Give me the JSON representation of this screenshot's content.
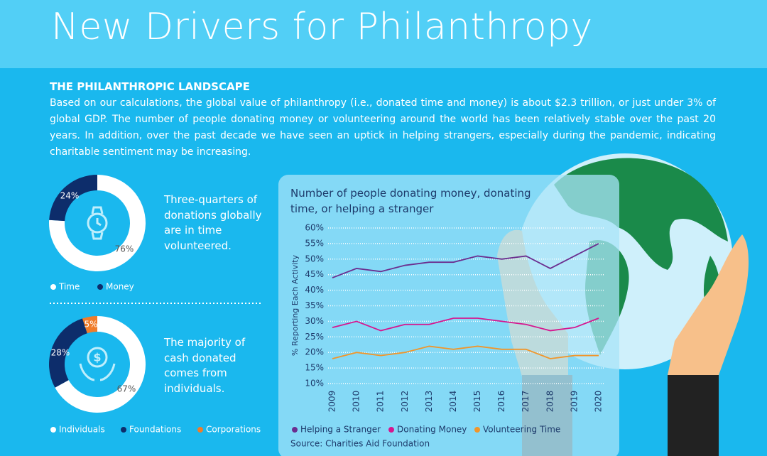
{
  "header": {
    "title": "New Drivers for Philanthropy"
  },
  "intro": {
    "heading": "THE PHILANTHROPIC LANDSCAPE",
    "text": "Based on our calculations, the global value of philanthropy (i.e., donated time and money) is about $2.3 trillion, or just under 3% of global GDP. The number of people donating money or volunteering around the world has been relatively stable over the past 20 years. In addition, over the past decade we have seen an uptick in helping strangers, especially during the pandemic, indicating charitable sentiment may be increasing."
  },
  "chart_data": [
    {
      "type": "pie",
      "text": "Three-quarters of donations globally are in time volunteered.",
      "categories": [
        "Time",
        "Money"
      ],
      "values": [
        76,
        24
      ],
      "value_labels": [
        "76%",
        "24%"
      ],
      "colors": [
        "#ffffff",
        "#0d2d6b"
      ]
    },
    {
      "type": "pie",
      "text": "The majority of cash donated comes from individuals.",
      "categories": [
        "Individuals",
        "Foundations",
        "Corporations"
      ],
      "values": [
        67,
        28,
        5
      ],
      "value_labels": [
        "67%",
        "28%",
        "5%"
      ],
      "colors": [
        "#ffffff",
        "#0d2d6b",
        "#f07c2a"
      ]
    },
    {
      "type": "line",
      "title": "Number of people donating money, donating time, or helping a stranger",
      "y_label": "% Reporting Each Activity",
      "source": "Source: Charities Aid Foundation",
      "categories": [
        "2009",
        "2010",
        "2011",
        "2012",
        "2013",
        "2014",
        "2015",
        "2016",
        "2017",
        "2018",
        "2019",
        "2020"
      ],
      "series": [
        {
          "name": "Helping a Stranger",
          "color": "#6b2e8f",
          "values": [
            44,
            47,
            46,
            48,
            49,
            49,
            51,
            50,
            51,
            47,
            51,
            55
          ]
        },
        {
          "name": "Donating Money",
          "color": "#d6168f",
          "values": [
            28,
            30,
            27,
            29,
            29,
            31,
            31,
            30,
            29,
            27,
            28,
            31
          ]
        },
        {
          "name": "Volunteering Time",
          "color": "#f0962b",
          "values": [
            18,
            20,
            19,
            20,
            22,
            21,
            22,
            21,
            21,
            18,
            19,
            19
          ]
        }
      ],
      "ylim": [
        10,
        60
      ],
      "yticks": [
        {
          "value": 10,
          "label": "10%"
        },
        {
          "value": 15,
          "label": "15%"
        },
        {
          "value": 20,
          "label": "20%"
        },
        {
          "value": 25,
          "label": "25%"
        },
        {
          "value": 30,
          "label": "30%"
        },
        {
          "value": 35,
          "label": "35%"
        },
        {
          "value": 40,
          "label": "40%"
        },
        {
          "value": 45,
          "label": "45%"
        },
        {
          "value": 50,
          "label": "50%"
        },
        {
          "value": 55,
          "label": "55%"
        },
        {
          "value": 60,
          "label": "60%"
        }
      ],
      "grid": true
    }
  ]
}
